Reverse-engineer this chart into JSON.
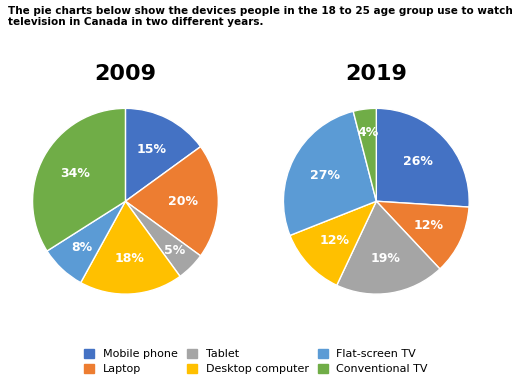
{
  "title_text": "The pie charts below show the devices people in the 18 to 25 age group use to watch\ntelevision in Canada in two different years.",
  "year2009": {
    "title": "2009",
    "labels": [
      "Mobile phone",
      "Laptop",
      "Tablet",
      "Desktop computer",
      "Flat-screen TV",
      "Conventional TV"
    ],
    "values": [
      15,
      20,
      5,
      18,
      8,
      34
    ],
    "colors": [
      "#4472C4",
      "#ED7D31",
      "#A5A5A5",
      "#FFC000",
      "#5B9BD5",
      "#70AD47"
    ],
    "startangle": 90
  },
  "year2019": {
    "title": "2019",
    "labels": [
      "Mobile phone",
      "Laptop",
      "Tablet",
      "Desktop computer",
      "Flat-screen TV",
      "Conventional TV"
    ],
    "values": [
      26,
      12,
      19,
      12,
      27,
      4
    ],
    "colors": [
      "#4472C4",
      "#ED7D31",
      "#A5A5A5",
      "#FFC000",
      "#5B9BD5",
      "#70AD47"
    ],
    "startangle": 90
  },
  "legend_labels": [
    "Mobile phone",
    "Laptop",
    "Tablet",
    "Desktop computer",
    "Flat-screen TV",
    "Conventional TV"
  ],
  "legend_colors": [
    "#4472C4",
    "#ED7D31",
    "#A5A5A5",
    "#FFC000",
    "#5B9BD5",
    "#70AD47"
  ],
  "background_color": "#FFFFFF",
  "title_fontsize": 7.5,
  "pie_title_fontsize": 16,
  "pct_fontsize": 9,
  "legend_fontsize": 8
}
